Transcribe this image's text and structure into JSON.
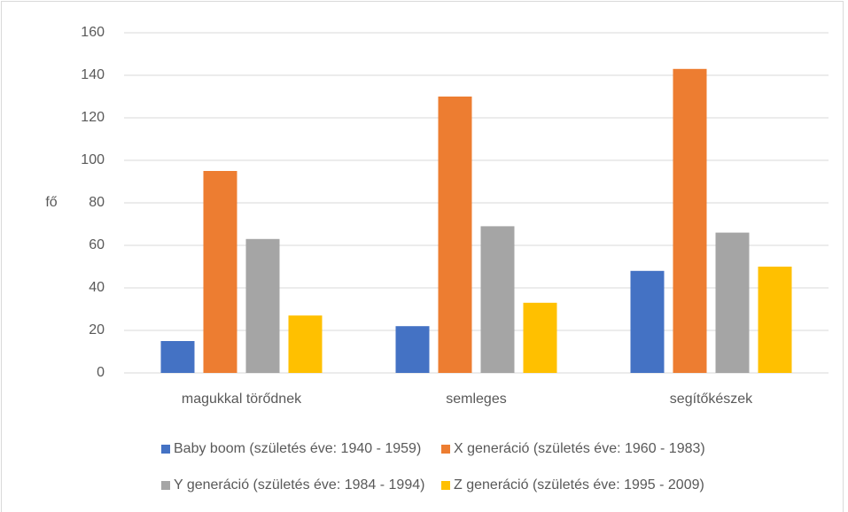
{
  "chart_data": {
    "type": "bar",
    "ylabel": "fő",
    "categories": [
      "magukkal törődnek",
      "semleges",
      "segítőkészek"
    ],
    "series": [
      {
        "name": "Baby boom (születés éve: 1940 - 1959)",
        "color": "#4472c4",
        "values": [
          15,
          22,
          48
        ]
      },
      {
        "name": "X generáció (születés éve: 1960 - 1983)",
        "color": "#ed7d31",
        "values": [
          95,
          130,
          143
        ]
      },
      {
        "name": "Y generáció (születés éve: 1984 - 1994)",
        "color": "#a5a5a5",
        "values": [
          63,
          69,
          66
        ]
      },
      {
        "name": "Z generáció (születés éve: 1995 - 2009)",
        "color": "#ffc000",
        "values": [
          27,
          33,
          50
        ]
      }
    ],
    "ylim": [
      0,
      160
    ],
    "yticks": [
      0,
      20,
      40,
      60,
      80,
      100,
      120,
      140,
      160
    ],
    "grid": true,
    "legend": "bottom"
  }
}
